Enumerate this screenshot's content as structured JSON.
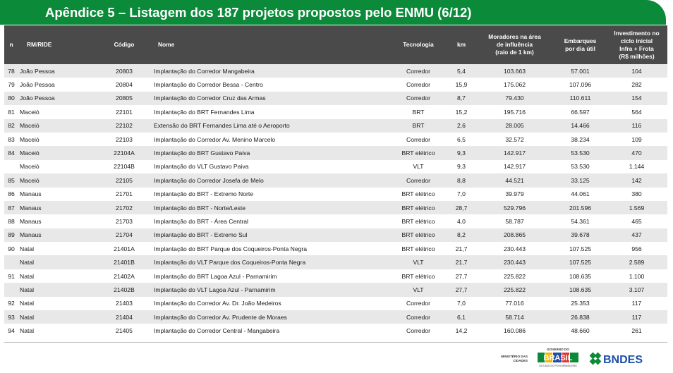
{
  "title": "Apêndice 5 – Listagem dos 187 projetos propostos pelo ENMU (6/12)",
  "colors": {
    "title_bg": "#0b8a3a",
    "header_bg": "#4a4a4a",
    "stripe": "#e8e8e8"
  },
  "table": {
    "headers": {
      "n": "n",
      "rm": "RM/RIDE",
      "codigo": "Código",
      "nome": "Nome",
      "tecnologia": "Tecnologia",
      "km": "km",
      "moradores": [
        "Moradores na área",
        "de influência",
        "(raio de  1 km)"
      ],
      "embarques": [
        "Embarques",
        "por dia útil"
      ],
      "investimento": [
        "Investimento no",
        "ciclo inicial",
        "Infra + Frota",
        "(R$ milhões)"
      ]
    },
    "rows": [
      {
        "n": "78",
        "rm": "João Pessoa",
        "codigo": "20803",
        "nome": "Implantação do Corredor Mangabeira",
        "tec": "Corredor",
        "km": "5,4",
        "mor": "103.663",
        "emb": "57.001",
        "inv": "104"
      },
      {
        "n": "79",
        "rm": "João Pessoa",
        "codigo": "20804",
        "nome": "Implantação do Corredor Bessa - Centro",
        "tec": "Corredor",
        "km": "15,9",
        "mor": "175.062",
        "emb": "107.096",
        "inv": "282"
      },
      {
        "n": "80",
        "rm": "João Pessoa",
        "codigo": "20805",
        "nome": "Implantação do Corredor Cruz das Armas",
        "tec": "Corredor",
        "km": "8,7",
        "mor": "79.430",
        "emb": "110.611",
        "inv": "154"
      },
      {
        "n": "81",
        "rm": "Maceió",
        "codigo": "22101",
        "nome": "Implantação do BRT Fernandes Lima",
        "tec": "BRT",
        "km": "15,2",
        "mor": "195.716",
        "emb": "66.597",
        "inv": "564"
      },
      {
        "n": "82",
        "rm": "Maceió",
        "codigo": "22102",
        "nome": "Extensão do BRT Fernandes Lima até o Aeroporto",
        "tec": "BRT",
        "km": "2,6",
        "mor": "28.005",
        "emb": "14.466",
        "inv": "116"
      },
      {
        "n": "83",
        "rm": "Maceió",
        "codigo": "22103",
        "nome": "Implantação do Corredor Av. Menino Marcelo",
        "tec": "Corredor",
        "km": "6,5",
        "mor": "32.572",
        "emb": "38.234",
        "inv": "109"
      },
      {
        "n": "84",
        "rm": "Maceió",
        "codigo": "22104A",
        "nome": "Implantação do BRT Gustavo Paiva",
        "tec": "BRT elétrico",
        "km": "9,3",
        "mor": "142.917",
        "emb": "53.530",
        "inv": "470"
      },
      {
        "n": "",
        "rm": "Maceió",
        "codigo": "22104B",
        "nome": "Implantação do VLT Gustavo Paiva",
        "tec": "VLT",
        "km": "9,3",
        "mor": "142.917",
        "emb": "53.530",
        "inv": "1.144"
      },
      {
        "n": "85",
        "rm": "Maceió",
        "codigo": "22105",
        "nome": "Implantação do Corredor Josefa de Melo",
        "tec": "Corredor",
        "km": "8,8",
        "mor": "44.521",
        "emb": "33.125",
        "inv": "142"
      },
      {
        "n": "86",
        "rm": "Manaus",
        "codigo": "21701",
        "nome": "Implantação do BRT - Extremo Norte",
        "tec": "BRT elétrico",
        "km": "7,0",
        "mor": "39.979",
        "emb": "44.061",
        "inv": "380"
      },
      {
        "n": "87",
        "rm": "Manaus",
        "codigo": "21702",
        "nome": "Implantação do BRT - Norte/Leste",
        "tec": "BRT elétrico",
        "km": "28,7",
        "mor": "529.796",
        "emb": "201.596",
        "inv": "1.569"
      },
      {
        "n": "88",
        "rm": "Manaus",
        "codigo": "21703",
        "nome": "Implantação do BRT - Área Central",
        "tec": "BRT elétrico",
        "km": "4,0",
        "mor": "58.787",
        "emb": "54.361",
        "inv": "465"
      },
      {
        "n": "89",
        "rm": "Manaus",
        "codigo": "21704",
        "nome": "Implantação do BRT - Extremo Sul",
        "tec": "BRT elétrico",
        "km": "8,2",
        "mor": "208.865",
        "emb": "39.678",
        "inv": "437"
      },
      {
        "n": "90",
        "rm": "Natal",
        "codigo": "21401A",
        "nome": "Implantação do BRT Parque dos Coqueiros-Ponta Negra",
        "tec": "BRT elétrico",
        "km": "21,7",
        "mor": "230.443",
        "emb": "107.525",
        "inv": "956"
      },
      {
        "n": "",
        "rm": "Natal",
        "codigo": "21401B",
        "nome": "Implantação do VLT Parque dos Coqueiros-Ponta Negra",
        "tec": "VLT",
        "km": "21,7",
        "mor": "230.443",
        "emb": "107.525",
        "inv": "2.589"
      },
      {
        "n": "91",
        "rm": "Natal",
        "codigo": "21402A",
        "nome": "Implantação do BRT Lagoa Azul - Parnamirim",
        "tec": "BRT elétrico",
        "km": "27,7",
        "mor": "225.822",
        "emb": "108.635",
        "inv": "1.100"
      },
      {
        "n": "",
        "rm": "Natal",
        "codigo": "21402B",
        "nome": "Implantação do VLT Lagoa Azul - Parnamirim",
        "tec": "VLT",
        "km": "27,7",
        "mor": "225.822",
        "emb": "108.635",
        "inv": "3.107"
      },
      {
        "n": "92",
        "rm": "Natal",
        "codigo": "21403",
        "nome": "Implantação do Corredor Av. Dr. João Medeiros",
        "tec": "Corredor",
        "km": "7,0",
        "mor": "77.016",
        "emb": "25.353",
        "inv": "117"
      },
      {
        "n": "93",
        "rm": "Natal",
        "codigo": "21404",
        "nome": "Implantação do Corredor Av. Prudente de Moraes",
        "tec": "Corredor",
        "km": "6,1",
        "mor": "58.714",
        "emb": "26.838",
        "inv": "117"
      },
      {
        "n": "94",
        "rm": "Natal",
        "codigo": "21405",
        "nome": "Implantação do Corredor Central - Mangabeira",
        "tec": "Corredor",
        "km": "14,2",
        "mor": "160.086",
        "emb": "48.660",
        "inv": "261"
      }
    ]
  },
  "footer": {
    "ministry": [
      "MINISTÉRIO DAS",
      "CIDADES"
    ],
    "gov_top": "GOVERNO DO",
    "gov_brasil": "BRASIL",
    "gov_bottom": "DO LADO DO POVO BRASILEIRO",
    "bndes": "BNDES"
  }
}
